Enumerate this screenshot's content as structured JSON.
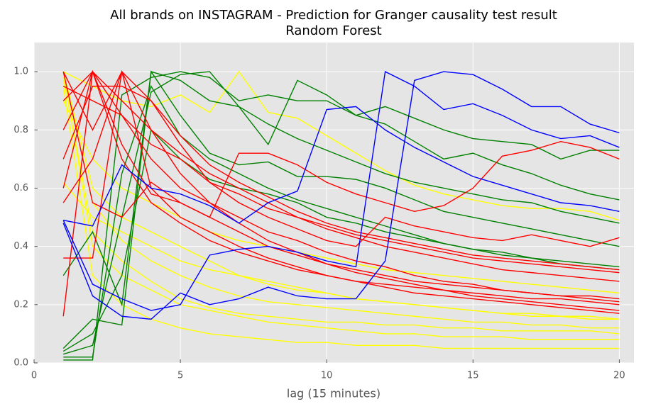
{
  "chart_data": {
    "type": "line",
    "title": "All brands on INSTAGRAM - Prediction for Granger causality test result",
    "subtitle": "Random Forest",
    "xlabel": "lag (15 minutes)",
    "x": [
      1,
      2,
      3,
      4,
      5,
      6,
      7,
      8,
      9,
      10,
      11,
      12,
      13,
      14,
      15,
      16,
      17,
      18,
      19,
      20
    ],
    "xlim": [
      0,
      20.5
    ],
    "xticks": [
      0,
      5,
      10,
      15,
      20
    ],
    "ylim": [
      0,
      1.1
    ],
    "yticks": [
      {
        "value": 0,
        "label": "0.0"
      },
      {
        "value": 0.2,
        "label": "0.2"
      },
      {
        "value": 0.4,
        "label": "0.4"
      },
      {
        "value": 0.6,
        "label": "0.6"
      },
      {
        "value": 0.8,
        "label": "0.8"
      },
      {
        "value": 1.0,
        "label": "1.0"
      }
    ],
    "grid": true,
    "series": [
      {
        "color": "#ffff00",
        "values": [
          1.0,
          0.6,
          0.5,
          0.45,
          0.4,
          0.35,
          0.3,
          0.28,
          0.26,
          0.24,
          0.22,
          0.21,
          0.2,
          0.19,
          0.18,
          0.17,
          0.16,
          0.16,
          0.15,
          0.15
        ]
      },
      {
        "color": "#ffff00",
        "values": [
          1.0,
          0.4,
          0.3,
          0.25,
          0.2,
          0.18,
          0.16,
          0.14,
          0.13,
          0.12,
          0.11,
          0.1,
          0.1,
          0.09,
          0.09,
          0.09,
          0.08,
          0.08,
          0.08,
          0.08
        ]
      },
      {
        "color": "#ffff00",
        "values": [
          0.95,
          0.3,
          0.2,
          0.15,
          0.12,
          0.1,
          0.09,
          0.08,
          0.07,
          0.07,
          0.06,
          0.06,
          0.06,
          0.05,
          0.05,
          0.05,
          0.05,
          0.05,
          0.05,
          0.05
        ]
      },
      {
        "color": "#ffff00",
        "values": [
          0.9,
          0.7,
          0.6,
          0.55,
          0.5,
          0.45,
          0.42,
          0.4,
          0.38,
          0.36,
          0.34,
          0.32,
          0.31,
          0.3,
          0.29,
          0.28,
          0.27,
          0.26,
          0.25,
          0.24
        ]
      },
      {
        "color": "#ffff00",
        "values": [
          1.0,
          0.95,
          0.9,
          0.88,
          0.92,
          0.86,
          1.0,
          0.86,
          0.84,
          0.78,
          0.72,
          0.66,
          0.61,
          0.58,
          0.56,
          0.54,
          0.53,
          0.53,
          0.52,
          0.49
        ]
      },
      {
        "color": "#ffff00",
        "values": [
          0.62,
          0.5,
          0.45,
          0.4,
          0.35,
          0.32,
          0.3,
          0.27,
          0.25,
          0.24,
          0.22,
          0.21,
          0.2,
          0.19,
          0.18,
          0.17,
          0.17,
          0.16,
          0.16,
          0.15
        ]
      },
      {
        "color": "#ffff00",
        "values": [
          1.0,
          0.55,
          0.42,
          0.35,
          0.3,
          0.26,
          0.23,
          0.21,
          0.2,
          0.19,
          0.18,
          0.17,
          0.16,
          0.15,
          0.14,
          0.14,
          0.13,
          0.13,
          0.12,
          0.12
        ]
      },
      {
        "color": "#ffff00",
        "values": [
          0.98,
          0.45,
          0.35,
          0.28,
          0.22,
          0.19,
          0.17,
          0.16,
          0.15,
          0.14,
          0.14,
          0.13,
          0.13,
          0.12,
          0.12,
          0.11,
          0.11,
          0.11,
          0.11,
          0.1
        ]
      },
      {
        "color": "#008000",
        "values": [
          0.05,
          0.15,
          0.13,
          1.0,
          0.97,
          0.9,
          0.88,
          0.82,
          0.77,
          0.73,
          0.69,
          0.65,
          0.62,
          0.6,
          0.58,
          0.56,
          0.55,
          0.52,
          0.5,
          0.48
        ]
      },
      {
        "color": "#008000",
        "values": [
          0.01,
          0.01,
          0.92,
          0.98,
          1.0,
          0.98,
          0.9,
          0.92,
          0.9,
          0.9,
          0.85,
          0.88,
          0.84,
          0.8,
          0.77,
          0.76,
          0.75,
          0.7,
          0.73,
          0.73
        ]
      },
      {
        "color": "#008000",
        "values": [
          0.03,
          0.06,
          0.5,
          0.93,
          0.99,
          1.0,
          0.88,
          0.75,
          0.97,
          0.92,
          0.85,
          0.82,
          0.76,
          0.7,
          0.72,
          0.68,
          0.65,
          0.61,
          0.58,
          0.56
        ]
      },
      {
        "color": "#008000",
        "values": [
          0.3,
          0.45,
          0.2,
          1.0,
          0.85,
          0.72,
          0.68,
          0.69,
          0.64,
          0.64,
          0.63,
          0.6,
          0.56,
          0.52,
          0.5,
          0.48,
          0.46,
          0.44,
          0.42,
          0.4
        ]
      },
      {
        "color": "#008000",
        "values": [
          0.02,
          0.02,
          0.65,
          0.95,
          0.78,
          0.7,
          0.65,
          0.6,
          0.56,
          0.53,
          0.5,
          0.47,
          0.44,
          0.41,
          0.39,
          0.37,
          0.36,
          0.34,
          0.33,
          0.32
        ]
      },
      {
        "color": "#008000",
        "values": [
          0.04,
          0.1,
          0.3,
          0.8,
          0.7,
          0.63,
          0.6,
          0.58,
          0.55,
          0.5,
          0.48,
          0.45,
          0.43,
          0.41,
          0.39,
          0.38,
          0.36,
          0.35,
          0.34,
          0.33
        ]
      },
      {
        "color": "#ff0000",
        "values": [
          0.16,
          1.0,
          0.85,
          0.7,
          0.6,
          0.55,
          0.5,
          0.45,
          0.42,
          0.38,
          0.35,
          0.33,
          0.3,
          0.28,
          0.27,
          0.25,
          0.24,
          0.23,
          0.22,
          0.21
        ]
      },
      {
        "color": "#ff0000",
        "values": [
          0.9,
          1.0,
          0.9,
          0.8,
          0.72,
          0.65,
          0.6,
          0.55,
          0.5,
          0.46,
          0.43,
          0.4,
          0.38,
          0.36,
          0.34,
          0.32,
          0.31,
          0.3,
          0.29,
          0.28
        ]
      },
      {
        "color": "#ff0000",
        "values": [
          1.0,
          0.8,
          1.0,
          0.8,
          0.65,
          0.55,
          0.48,
          0.42,
          0.38,
          0.34,
          0.31,
          0.29,
          0.27,
          0.25,
          0.23,
          0.22,
          0.21,
          0.2,
          0.19,
          0.18
        ]
      },
      {
        "color": "#ff0000",
        "values": [
          0.55,
          0.7,
          1.0,
          0.6,
          0.5,
          0.45,
          0.4,
          0.36,
          0.33,
          0.3,
          0.28,
          0.26,
          0.24,
          0.23,
          0.22,
          0.21,
          0.2,
          0.19,
          0.18,
          0.17
        ]
      },
      {
        "color": "#ff0000",
        "values": [
          0.8,
          1.0,
          0.75,
          0.58,
          0.55,
          0.5,
          0.72,
          0.72,
          0.68,
          0.62,
          0.58,
          0.55,
          0.52,
          0.54,
          0.6,
          0.71,
          0.73,
          0.76,
          0.74,
          0.7
        ]
      },
      {
        "color": "#ff0000",
        "values": [
          0.36,
          0.36,
          1.0,
          0.9,
          0.78,
          0.68,
          0.62,
          0.57,
          0.52,
          0.48,
          0.45,
          0.43,
          0.41,
          0.39,
          0.37,
          0.36,
          0.35,
          0.34,
          0.33,
          0.32
        ]
      },
      {
        "color": "#ff0000",
        "values": [
          0.95,
          0.9,
          0.85,
          0.75,
          0.7,
          0.62,
          0.58,
          0.53,
          0.5,
          0.47,
          0.44,
          0.42,
          0.4,
          0.38,
          0.36,
          0.35,
          0.34,
          0.33,
          0.32,
          0.31
        ]
      },
      {
        "color": "#ff0000",
        "values": [
          0.6,
          1.0,
          0.7,
          0.55,
          0.48,
          0.42,
          0.38,
          0.35,
          0.32,
          0.3,
          0.28,
          0.27,
          0.26,
          0.25,
          0.24,
          0.23,
          0.22,
          0.22,
          0.21,
          0.2
        ]
      },
      {
        "color": "#ff0000",
        "values": [
          0.7,
          0.95,
          0.95,
          0.9,
          0.75,
          0.62,
          0.55,
          0.5,
          0.46,
          0.42,
          0.4,
          0.5,
          0.47,
          0.45,
          0.43,
          0.42,
          0.44,
          0.42,
          0.4,
          0.43
        ]
      },
      {
        "color": "#ff0000",
        "values": [
          1.0,
          0.55,
          0.5,
          0.62,
          0.55,
          0.5,
          0.45,
          0.4,
          0.37,
          0.34,
          0.32,
          0.3,
          0.28,
          0.27,
          0.26,
          0.25,
          0.24,
          0.23,
          0.23,
          0.22
        ]
      },
      {
        "color": "#0000ff",
        "values": [
          0.49,
          0.27,
          0.22,
          0.18,
          0.2,
          0.37,
          0.39,
          0.4,
          0.38,
          0.35,
          0.33,
          1.0,
          0.95,
          0.87,
          0.89,
          0.85,
          0.8,
          0.77,
          0.78,
          0.74
        ]
      },
      {
        "color": "#0000ff",
        "values": [
          0.48,
          0.23,
          0.16,
          0.15,
          0.24,
          0.2,
          0.22,
          0.26,
          0.23,
          0.22,
          0.22,
          0.35,
          0.97,
          1.0,
          0.99,
          0.94,
          0.88,
          0.88,
          0.82,
          0.79
        ]
      },
      {
        "color": "#0000ff",
        "values": [
          0.49,
          0.47,
          0.68,
          0.6,
          0.58,
          0.54,
          0.48,
          0.55,
          0.59,
          0.87,
          0.88,
          0.8,
          0.74,
          0.69,
          0.64,
          0.61,
          0.58,
          0.55,
          0.54,
          0.52
        ]
      }
    ]
  }
}
